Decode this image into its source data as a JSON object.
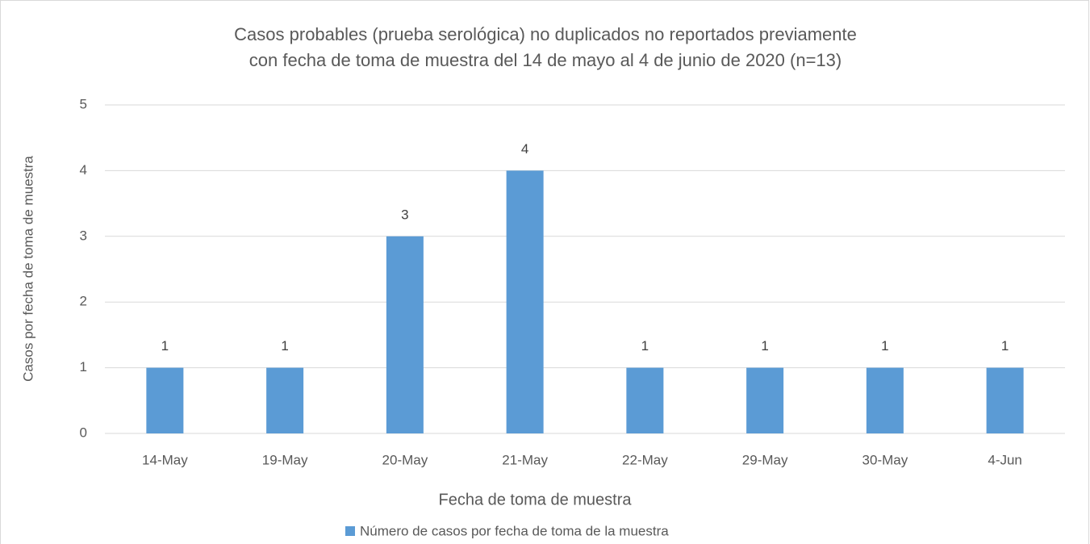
{
  "chart_data": {
    "type": "bar",
    "title": [
      "Casos probables (prueba serológica) no duplicados no reportados previamente",
      "con fecha de toma de muestra del 14 de mayo al 4 de junio de 2020 (n=13)"
    ],
    "x_label": "Fecha de toma de muestra",
    "y_label": "Casos por fecha de toma de muestra",
    "categories": [
      "14-May",
      "19-May",
      "20-May",
      "21-May",
      "22-May",
      "29-May",
      "30-May",
      "4-Jun"
    ],
    "series": [
      {
        "name": "Número de casos por fecha de toma de la muestra",
        "color": "#5b9bd5",
        "values": [
          1,
          1,
          3,
          4,
          1,
          1,
          1,
          1
        ]
      }
    ],
    "ylim": [
      0,
      5
    ],
    "yticks": [
      0,
      1,
      2,
      3,
      4,
      5
    ],
    "grid": true,
    "legend": "bottom"
  }
}
